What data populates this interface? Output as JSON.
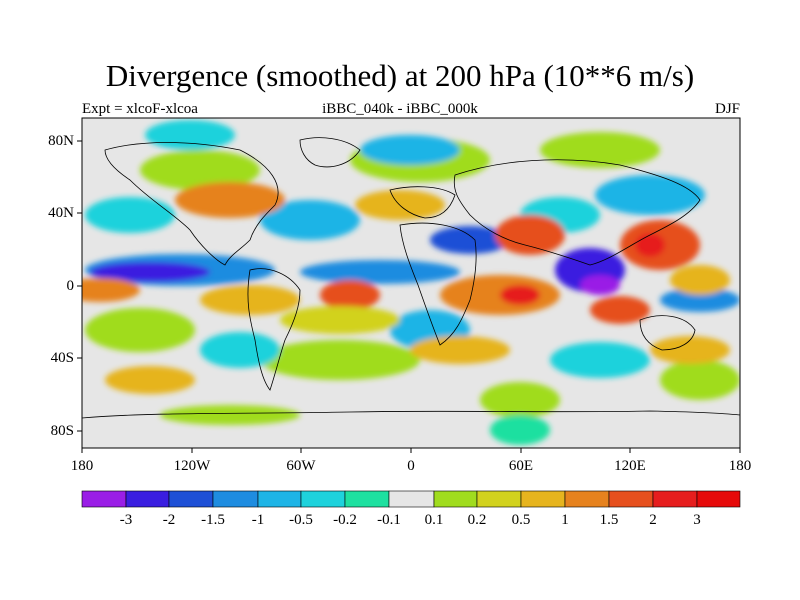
{
  "title": "Divergence (smoothed) at 200 hPa (10**6 m/s)",
  "subtitle_left": "Expt = xlcoF-xlcoa",
  "subtitle_center": "iBBC_040k - iBBC_000k",
  "subtitle_right": "DJF",
  "lat_labels": [
    "80N",
    "40N",
    "0",
    "40S",
    "80S"
  ],
  "lon_labels": [
    "180",
    "120W",
    "60W",
    "0",
    "60E",
    "120E",
    "180"
  ],
  "colorbar": {
    "labels": [
      "-3",
      "-2",
      "-1.5",
      "-1",
      "-0.5",
      "-0.2",
      "-0.1",
      "0.1",
      "0.2",
      "0.5",
      "1",
      "1.5",
      "2",
      "3"
    ],
    "colors": [
      "#9a1ee6",
      "#3a1ee0",
      "#1e50d6",
      "#1e8ce0",
      "#1eb4e6",
      "#1ed2dc",
      "#1ee0a0",
      "#e6e6e6",
      "#a0dc1e",
      "#d2d21e",
      "#e6b41e",
      "#e6821e",
      "#e6501e",
      "#e61e1e",
      "#e60a0a"
    ]
  },
  "colors": {
    "land_outline": "#000000",
    "neutral": "#e6e6e6"
  }
}
